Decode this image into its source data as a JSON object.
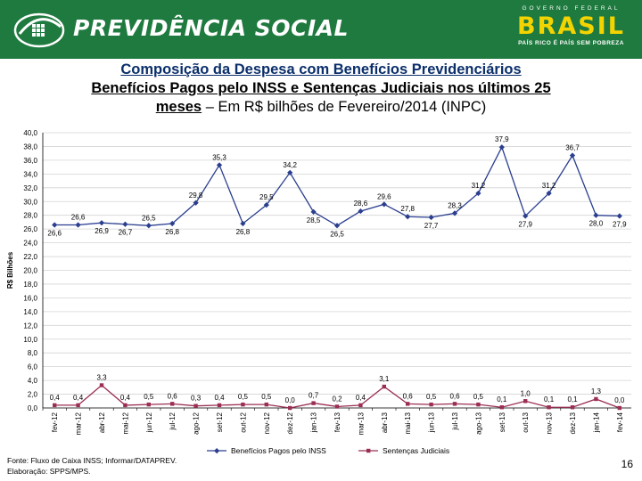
{
  "header": {
    "brand": "PREVIDÊNCIA SOCIAL",
    "gov_top": "GOVERNO FEDERAL",
    "gov_word": "BRASIL",
    "gov_slogan": "PAÍS RICO É PAÍS SEM POBREZA"
  },
  "title": {
    "line1": "Composição da Despesa com Benefícios Previdenciários",
    "line2": "Benefícios Pagos pelo INSS e Sentenças Judiciais nos últimos 25",
    "line3_bold": "meses",
    "line3_rest": " – Em R$ bilhões de Fevereiro/2014 (INPC)"
  },
  "footer": {
    "source": "Fonte: Fluxo de Caixa INSS; Informar/DATAPREV.",
    "elaboration": "Elaboração: SPPS/MPS.",
    "page": "16"
  },
  "colors": {
    "banner": "#1f7a3f",
    "series1": "#2b3f8f",
    "series2": "#9a2f52"
  },
  "chart_data": {
    "type": "line",
    "ylabel": "R$ Bilhões",
    "ylim": [
      0,
      40
    ],
    "ytick_step": 2,
    "grid": true,
    "legend_position": "bottom",
    "categories": [
      "fev-12",
      "mar-12",
      "abr-12",
      "mai-12",
      "jun-12",
      "jul-12",
      "ago-12",
      "set-12",
      "out-12",
      "nov-12",
      "dez-12",
      "jan-13",
      "fev-13",
      "mar-13",
      "abr-13",
      "mai-13",
      "jun-13",
      "jul-13",
      "ago-13",
      "set-13",
      "out-13",
      "nov-13",
      "dez-13",
      "jan-14",
      "fev-14"
    ],
    "series": [
      {
        "name": "Benefícios Pagos pelo INSS",
        "values": [
          26.6,
          26.6,
          26.9,
          26.7,
          26.5,
          26.8,
          29.8,
          35.3,
          26.8,
          29.5,
          34.2,
          28.5,
          26.5,
          28.6,
          29.6,
          27.8,
          27.7,
          28.3,
          31.2,
          37.9,
          27.9,
          31.2,
          36.7,
          28.0,
          27.9
        ],
        "labels": [
          "26,6",
          "26,6",
          "26,9",
          "26,7",
          "26,5",
          "26,8",
          "29,8",
          "35,3",
          "26,8",
          "29,5",
          "34,2",
          "28,5",
          "26,5",
          "28,6",
          "29,6",
          "27,8",
          "27,7",
          "28,3",
          "31,2",
          "37,9",
          "27,9",
          "31,2",
          "36,7",
          "28,0",
          "27,9"
        ],
        "label_pos": [
          "below",
          "above",
          "below",
          "below",
          "above",
          "below",
          "above",
          "above",
          "below",
          "above",
          "above",
          "below",
          "below",
          "above",
          "above",
          "above",
          "below",
          "above",
          "above",
          "above",
          "below",
          "above",
          "above",
          "below",
          "below"
        ]
      },
      {
        "name": "Sentenças Judiciais",
        "values": [
          0.4,
          0.4,
          3.3,
          0.4,
          0.5,
          0.6,
          0.3,
          0.4,
          0.5,
          0.5,
          0.0,
          0.7,
          0.2,
          0.4,
          3.1,
          0.6,
          0.5,
          0.6,
          0.5,
          0.1,
          1.0,
          0.1,
          0.1,
          1.3,
          0.0
        ],
        "labels": [
          "0,4",
          "0,4",
          "3,3",
          "0,4",
          "0,5",
          "0,6",
          "0,3",
          "0,4",
          "0,5",
          "0,5",
          "0,0",
          "0,7",
          "0,2",
          "0,4",
          "3,1",
          "0,6",
          "0,5",
          "0,6",
          "0,5",
          "0,1",
          "1,0",
          "0,1",
          "0,1",
          "1,3",
          "0,0"
        ]
      }
    ]
  }
}
